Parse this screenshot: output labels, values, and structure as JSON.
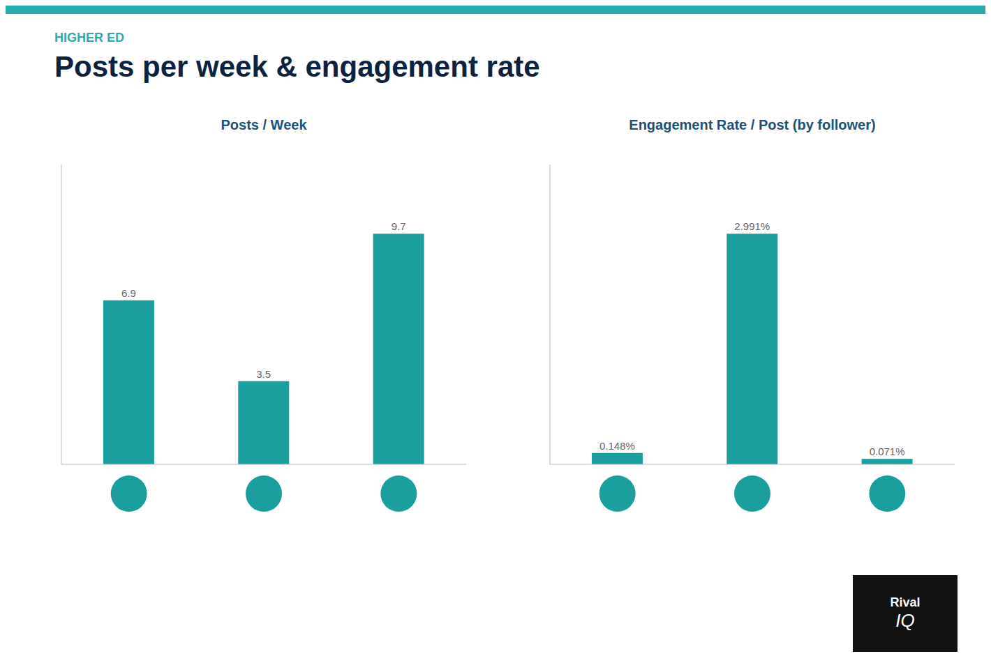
{
  "title": "Posts per week & engagement rate",
  "subtitle": "HIGHER ED",
  "annotations": [
    "Rival",
    "IQ"
  ],
  "chart_data": [
    {
      "type": "bar",
      "title": "Posts / Week",
      "categories": [
        null,
        null,
        null
      ],
      "values": [
        6.9,
        3.5,
        9.7
      ],
      "color": "#1a9e9e",
      "ylim": [
        0,
        12.61
      ],
      "data_labels": true,
      "tick_labels": false,
      "grid": false
    },
    {
      "type": "bar",
      "title": "Engagement Rate / Post (by follower)",
      "categories": [
        null,
        null,
        null
      ],
      "values": [
        0.00148,
        0.02991,
        0.00071
      ],
      "value_labels": [
        "0.148%",
        "2.991%",
        "0.071%"
      ],
      "color": "#1a9e9e",
      "ylim": [
        0,
        0.038883
      ],
      "data_labels": true,
      "tick_labels": false,
      "grid": false
    }
  ]
}
